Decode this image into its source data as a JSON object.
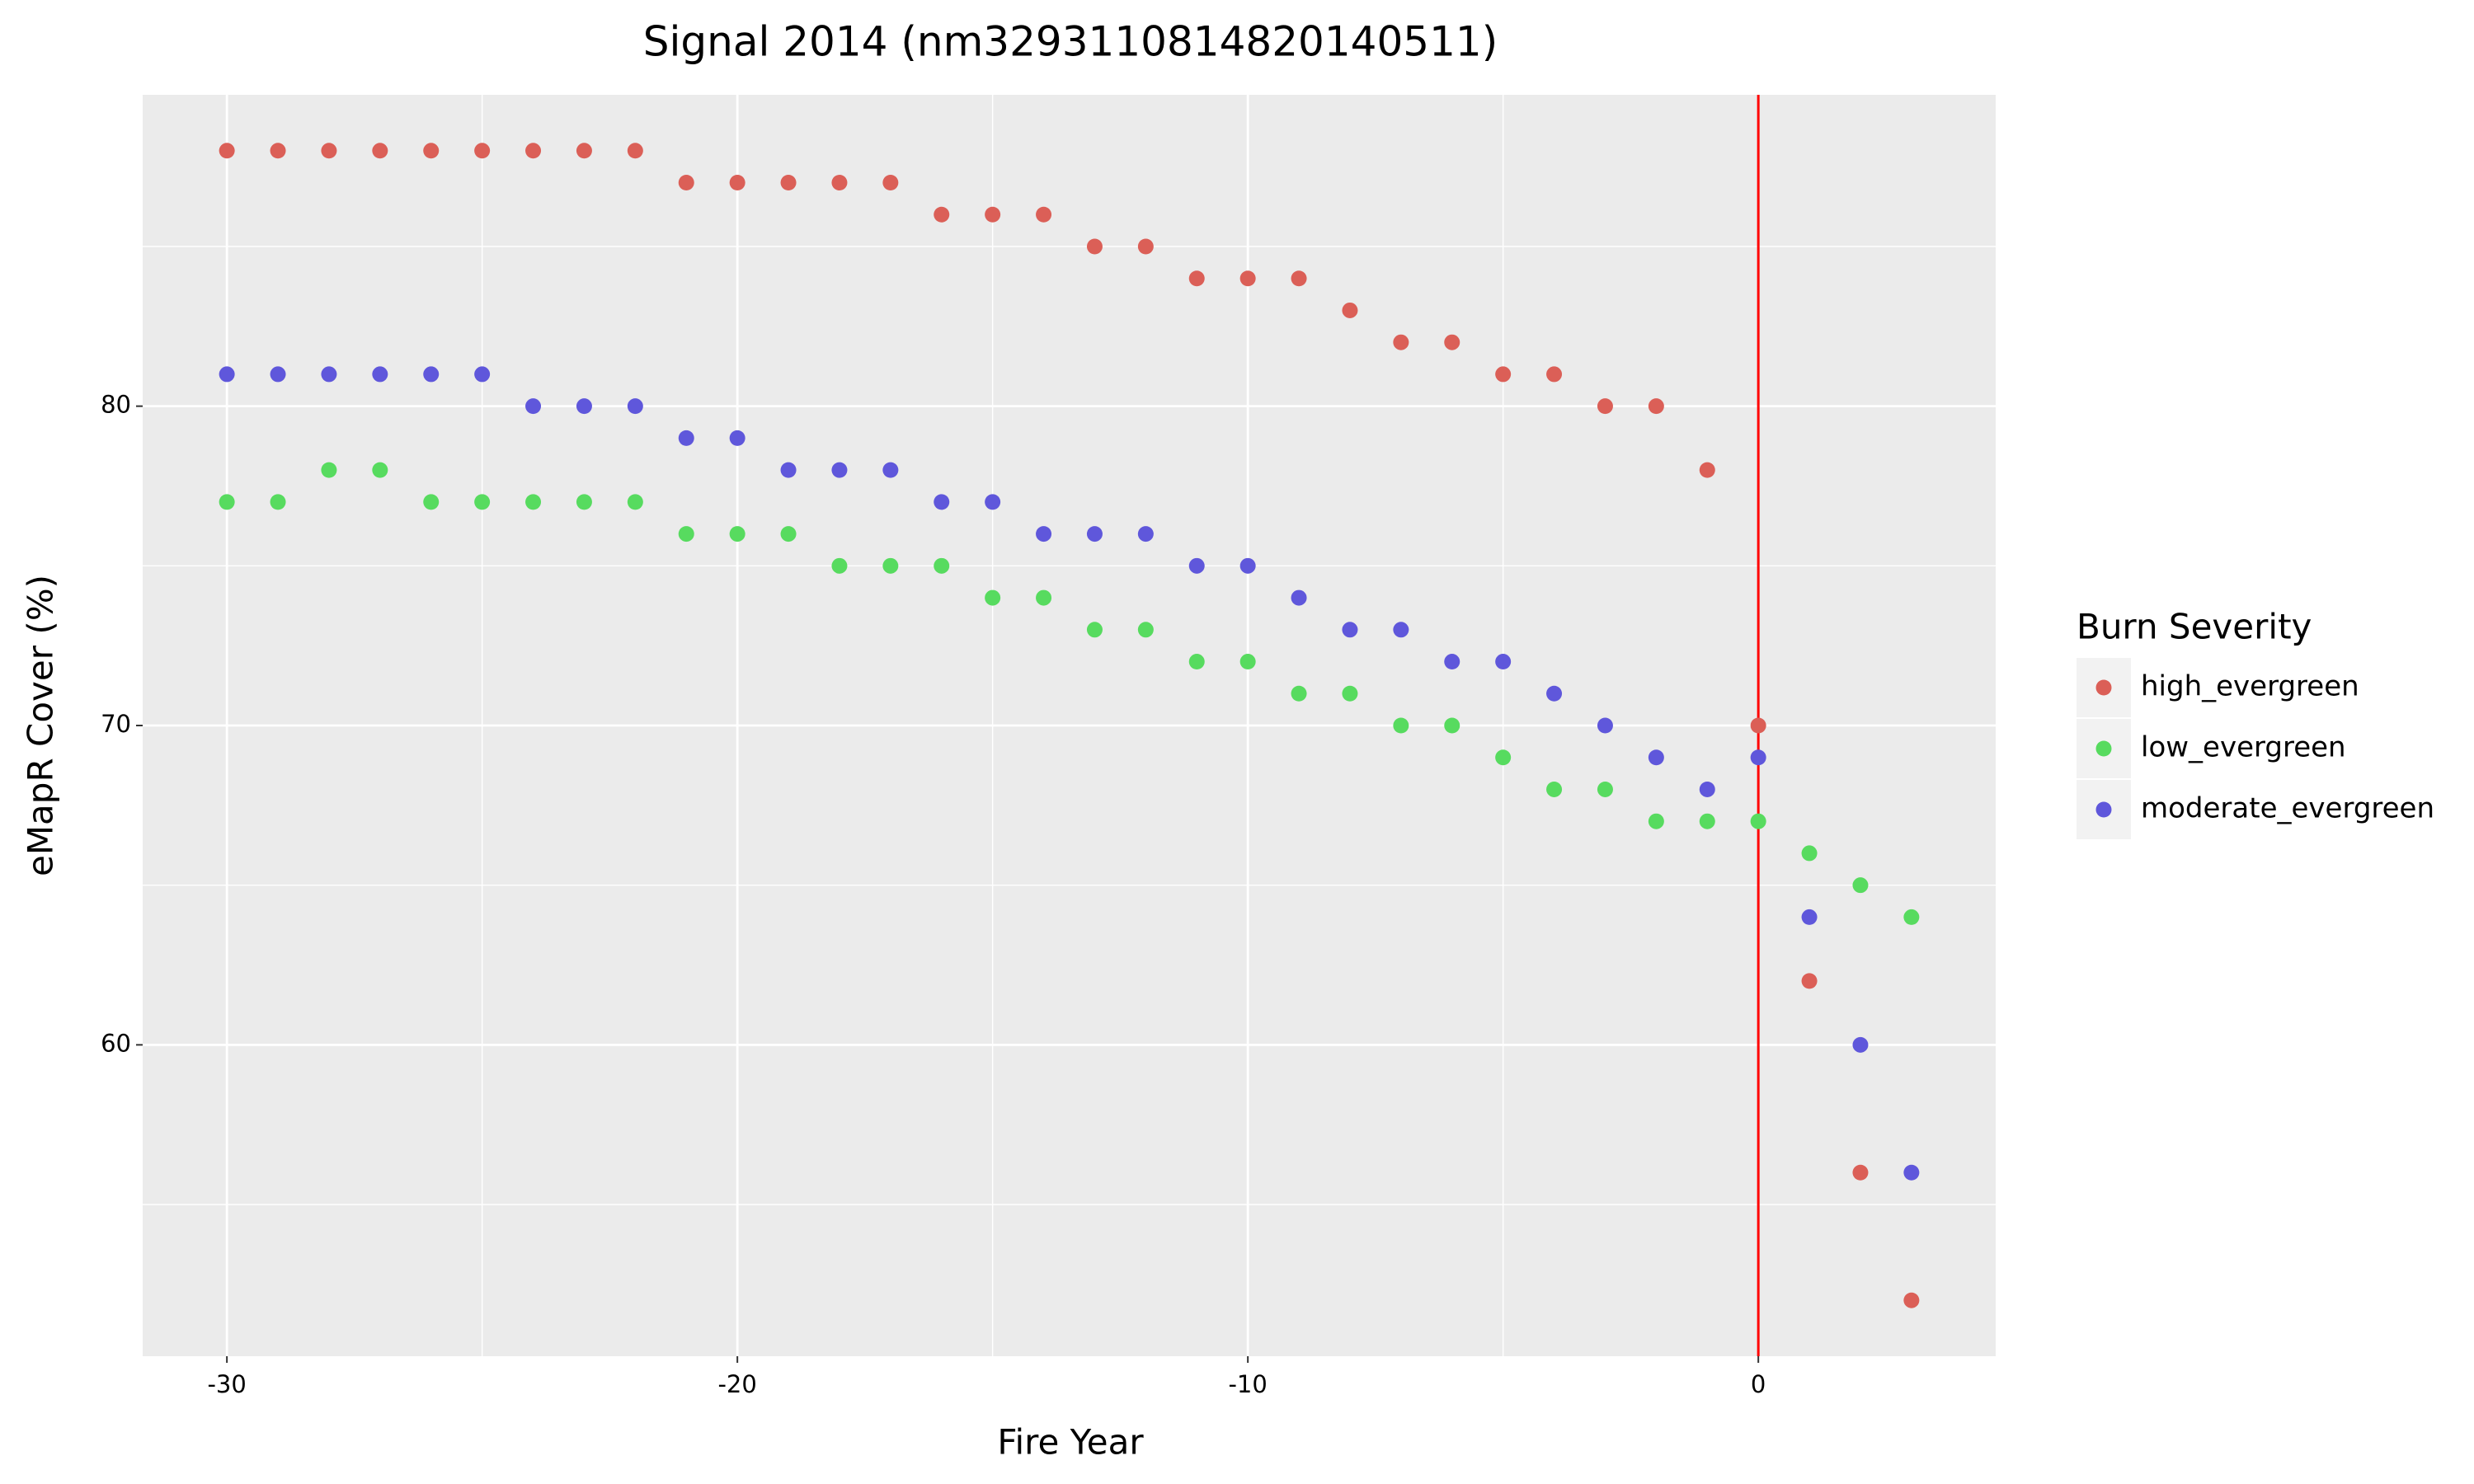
{
  "chart_data": {
    "type": "scatter",
    "title": "Signal 2014 (nm3293110814820140511)",
    "x_label": "Fire Year",
    "y_label": "eMapR Cover (%)",
    "x": [
      -30,
      -29,
      -28,
      -27,
      -26,
      -25,
      -24,
      -23,
      -22,
      -21,
      -20,
      -19,
      -18,
      -17,
      -16,
      -15,
      -14,
      -13,
      -12,
      -11,
      -10,
      -9,
      -8,
      -7,
      -6,
      -5,
      -4,
      -3,
      -2,
      -1,
      0,
      1,
      2,
      3
    ],
    "series": [
      {
        "name": "high_evergreen",
        "color": "#db5f57",
        "values": [
          88,
          88,
          88,
          88,
          88,
          88,
          88,
          88,
          88,
          87,
          87,
          87,
          87,
          87,
          86,
          86,
          86,
          85,
          85,
          84,
          84,
          84,
          83,
          82,
          82,
          81,
          81,
          80,
          80,
          78,
          70,
          62,
          56,
          52
        ]
      },
      {
        "name": "low_evergreen",
        "color": "#57db5f",
        "values": [
          77,
          77,
          78,
          78,
          77,
          77,
          77,
          77,
          77,
          76,
          76,
          76,
          75,
          75,
          75,
          74,
          74,
          73,
          73,
          72,
          72,
          71,
          71,
          70,
          70,
          69,
          68,
          68,
          67,
          67,
          67,
          66,
          65,
          64
        ]
      },
      {
        "name": "moderate_evergreen",
        "color": "#5f57db",
        "values": [
          81,
          81,
          81,
          81,
          81,
          81,
          80,
          80,
          80,
          79,
          79,
          78,
          78,
          78,
          77,
          77,
          76,
          76,
          76,
          75,
          75,
          74,
          73,
          73,
          72,
          72,
          71,
          70,
          69,
          68,
          69,
          64,
          60,
          56
        ]
      }
    ],
    "legend_title": "Burn Severity",
    "legend_position": "right",
    "xlim": [
      -31.65,
      4.65
    ],
    "xticks": [
      -30,
      -20,
      -10,
      0
    ],
    "x_minor_ticks": [
      -25,
      -15,
      -5
    ],
    "ylim": [
      50.25,
      89.75
    ],
    "yticks": [
      60,
      70,
      80
    ],
    "y_minor_ticks": [
      55,
      65,
      75,
      85
    ],
    "grid": true,
    "vline": {
      "x": 0,
      "color": "#ff0000"
    }
  }
}
